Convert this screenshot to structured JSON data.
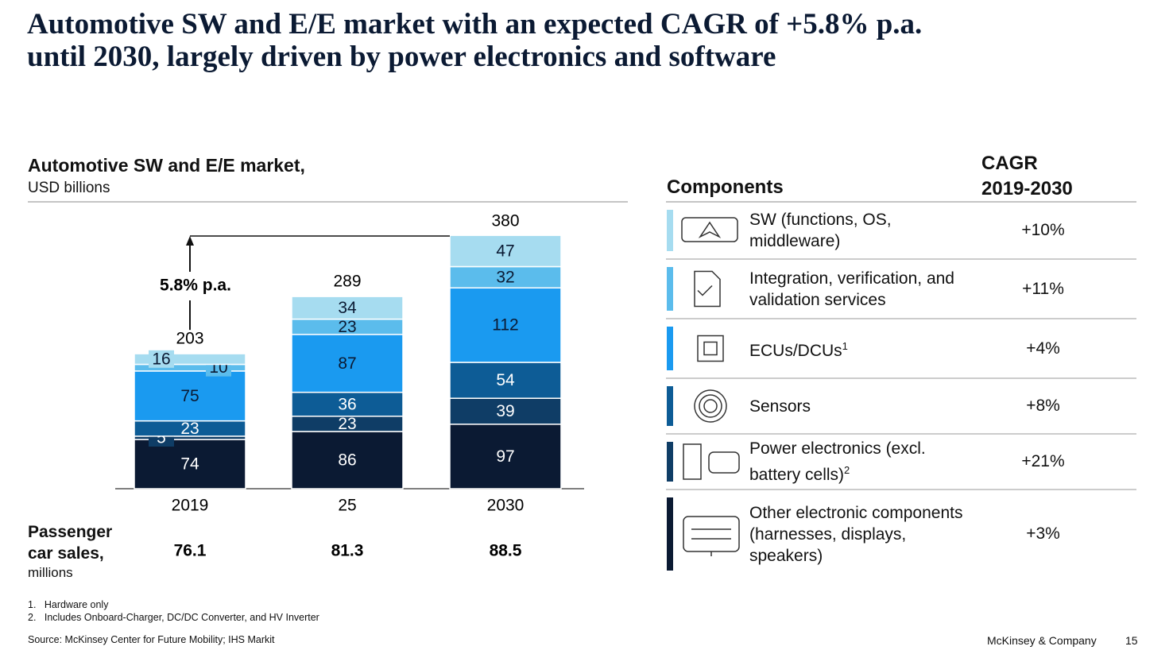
{
  "slide": {
    "title": [
      "Automotive SW and E/E market with an expected CAGR of +5.8% p.a.",
      "until 2030, largely driven by power electronics and software"
    ],
    "components_header": "Components",
    "cagr_header": [
      "CAGR",
      "2019-2030"
    ],
    "footnotes": [
      {
        "number": "1.",
        "text": "Hardware only"
      },
      {
        "number": "2.",
        "text": "Includes Onboard-Charger, DC/DC Converter, and HV Inverter"
      }
    ],
    "source": "Source: McKinsey Center for Future Mobility; IHS Markit",
    "brand": "McKinsey & Company",
    "page": "15"
  },
  "chart_data": {
    "type": "stacked_bar",
    "title": "Automotive SW and E/E market,",
    "subtitle": "USD billions",
    "categories": [
      "2019",
      "25",
      "2030"
    ],
    "totals": [
      203,
      289,
      380
    ],
    "ylim": [
      0,
      380
    ],
    "annotation": "5.8% p.a.",
    "series": [
      {
        "name": "Other electronic components (harnesses, displays, speakers)",
        "color": "#0b1a33",
        "values": [
          74,
          86,
          97
        ],
        "cagr": "+3%"
      },
      {
        "name": "Power electronics (excl. battery cells)",
        "footnote": "2",
        "color": "#0f3d66",
        "values": [
          5,
          23,
          39
        ],
        "cagr": "+21%"
      },
      {
        "name": "Sensors",
        "color": "#0d5c96",
        "values": [
          23,
          36,
          54
        ],
        "cagr": "+8%"
      },
      {
        "name": "ECUs/DCUs",
        "footnote": "1",
        "color": "#1a9af0",
        "values": [
          75,
          87,
          112
        ],
        "cagr": "+4%"
      },
      {
        "name": "Integration, verification, and validation services",
        "color": "#5bbcec",
        "values": [
          10,
          23,
          32
        ],
        "cagr": "+11%"
      },
      {
        "name": "SW (functions, OS, middleware)",
        "color": "#a6dcf0",
        "values": [
          16,
          34,
          47
        ],
        "cagr": "+10%"
      }
    ],
    "sales_label": "Passenger car sales,",
    "sales_unit": "millions",
    "sales": [
      "76.1",
      "81.3",
      "88.5"
    ]
  }
}
